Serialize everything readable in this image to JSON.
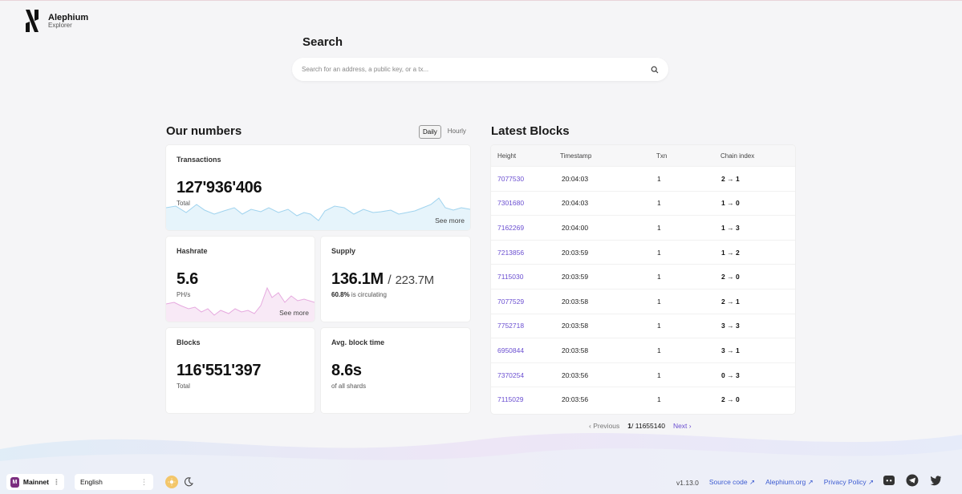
{
  "brand": {
    "title": "Alephium",
    "subtitle": "Explorer"
  },
  "search": {
    "title": "Search",
    "placeholder": "Search for an address, a public key, or a tx..."
  },
  "numbers": {
    "title": "Our numbers",
    "toggle": {
      "daily": "Daily",
      "hourly": "Hourly",
      "selected": "Daily"
    },
    "transactions": {
      "label": "Transactions",
      "value": "127'936'406",
      "sub": "Total",
      "see_more": "See more"
    },
    "hashrate": {
      "label": "Hashrate",
      "value": "5.6",
      "unit": "PH/s",
      "see_more": "See more"
    },
    "supply": {
      "label": "Supply",
      "value": "136.1M",
      "sep": "/",
      "total": "223.7M",
      "pct": "60.8%",
      "pct_text": "is circulating"
    },
    "blocks": {
      "label": "Blocks",
      "value": "116'551'397",
      "sub": "Total"
    },
    "avg_block_time": {
      "label": "Avg. block time",
      "value": "8.6s",
      "sub": "of all shards"
    }
  },
  "latest_blocks": {
    "title": "Latest Blocks",
    "columns": [
      "Height",
      "Timestamp",
      "Txn",
      "Chain index"
    ],
    "rows": [
      {
        "height": "7077530",
        "time": "20:04:03",
        "txn": "1",
        "chain": "2 → 1"
      },
      {
        "height": "7301680",
        "time": "20:04:03",
        "txn": "1",
        "chain": "1 → 0"
      },
      {
        "height": "7162269",
        "time": "20:04:00",
        "txn": "1",
        "chain": "1 → 3"
      },
      {
        "height": "7213856",
        "time": "20:03:59",
        "txn": "1",
        "chain": "1 → 2"
      },
      {
        "height": "7115030",
        "time": "20:03:59",
        "txn": "1",
        "chain": "2 → 0"
      },
      {
        "height": "7077529",
        "time": "20:03:58",
        "txn": "1",
        "chain": "2 → 1"
      },
      {
        "height": "7752718",
        "time": "20:03:58",
        "txn": "1",
        "chain": "3 → 3"
      },
      {
        "height": "6950844",
        "time": "20:03:58",
        "txn": "1",
        "chain": "3 → 1"
      },
      {
        "height": "7370254",
        "time": "20:03:56",
        "txn": "1",
        "chain": "0 → 3"
      },
      {
        "height": "7115029",
        "time": "20:03:56",
        "txn": "1",
        "chain": "2 → 0"
      }
    ],
    "pager": {
      "prev": "Previous",
      "page": "1",
      "of": "/ 11655140",
      "next": "Next"
    }
  },
  "footer": {
    "network": {
      "badge": "M",
      "label": "Mainnet"
    },
    "language": "English",
    "version": "v1.13.0",
    "links": {
      "source": "Source code",
      "site": "Alephium.org",
      "privacy": "Privacy Policy"
    }
  },
  "colors": {
    "accent": "#6b4fd1",
    "link": "#3c5bd1",
    "tx_line": "#9fd3ee",
    "hash_line": "#e6a9df"
  },
  "icons": [
    "search-icon",
    "sun-icon",
    "moon-icon",
    "discord-icon",
    "telegram-icon",
    "twitter-icon",
    "external-link-icon",
    "chevron-left-icon",
    "chevron-right-icon"
  ]
}
